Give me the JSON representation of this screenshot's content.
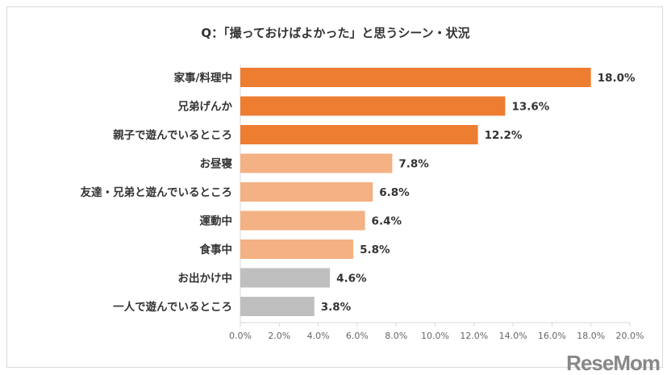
{
  "chart_data": {
    "type": "bar",
    "orientation": "horizontal",
    "title": "Q：「撮っておけばよかった」と思うシーン・状況",
    "categories": [
      "家事/料理中",
      "兄弟げんか",
      "親子で遊んでいるところ",
      "お昼寝",
      "友達・兄弟と遊んでいるところ",
      "運動中",
      "食事中",
      "お出かけ中",
      "一人で遊んでいるところ"
    ],
    "values": [
      18.0,
      13.6,
      12.2,
      7.8,
      6.8,
      6.4,
      5.8,
      4.6,
      3.8
    ],
    "value_labels": [
      "18.0%",
      "13.6%",
      "12.2%",
      "7.8%",
      "6.8%",
      "6.4%",
      "5.8%",
      "4.6%",
      "3.8%"
    ],
    "bar_colors": [
      "#ED7D31",
      "#ED7D31",
      "#ED7D31",
      "#F4B183",
      "#F4B183",
      "#F4B183",
      "#F4B183",
      "#BFBFBF",
      "#BFBFBF"
    ],
    "xlim": [
      0,
      20
    ],
    "xticks": [
      "0.0%",
      "2.0%",
      "4.0%",
      "6.0%",
      "8.0%",
      "10.0%",
      "12.0%",
      "14.0%",
      "16.0%",
      "18.0%",
      "20.0%"
    ],
    "xlabel": "",
    "ylabel": "",
    "grid": false
  },
  "watermark": "ReseMom"
}
